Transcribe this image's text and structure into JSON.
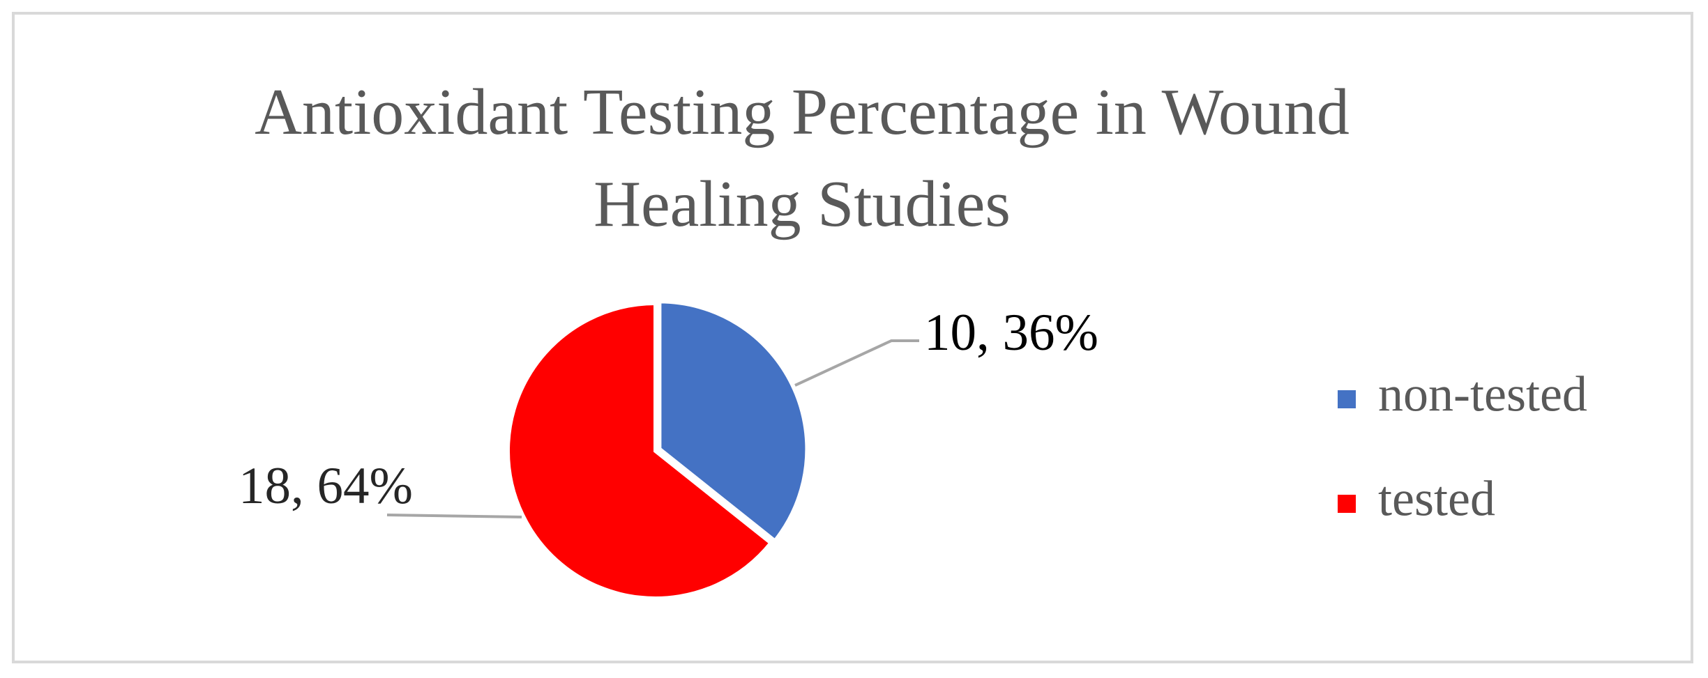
{
  "chart_data": {
    "type": "pie",
    "title": "Antioxidant Testing Percentage in Wound Healing Studies",
    "categories": [
      "non-tested",
      "tested"
    ],
    "values": [
      10,
      18
    ],
    "value_labels": [
      "10, 36%",
      "18, 64%"
    ],
    "colors": [
      "#4472c4",
      "#ff0000"
    ],
    "legend": "right"
  }
}
